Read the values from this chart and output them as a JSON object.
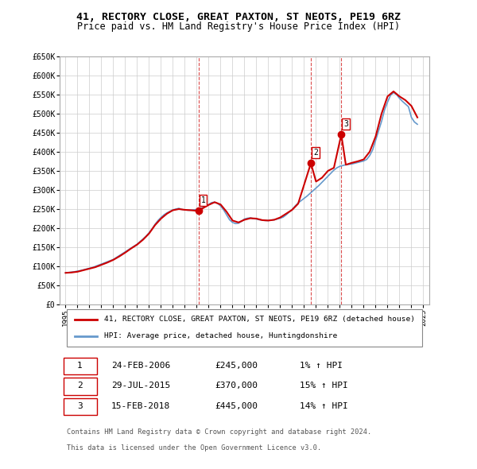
{
  "title": "41, RECTORY CLOSE, GREAT PAXTON, ST NEOTS, PE19 6RZ",
  "subtitle": "Price paid vs. HM Land Registry's House Price Index (HPI)",
  "ylabel": "",
  "background_color": "#ffffff",
  "plot_bg_color": "#ffffff",
  "grid_color": "#cccccc",
  "red_line_color": "#cc0000",
  "blue_line_color": "#6699cc",
  "sale_marker_color": "#cc0000",
  "dashed_line_color": "#cc0000",
  "ylim_min": 0,
  "ylim_max": 650000,
  "yticks": [
    0,
    50000,
    100000,
    150000,
    200000,
    250000,
    300000,
    350000,
    400000,
    450000,
    500000,
    550000,
    600000,
    650000
  ],
  "ytick_labels": [
    "£0",
    "£50K",
    "£100K",
    "£150K",
    "£200K",
    "£250K",
    "£300K",
    "£350K",
    "£400K",
    "£450K",
    "£500K",
    "£550K",
    "£600K",
    "£650K"
  ],
  "xlim_min": 1994.5,
  "xlim_max": 2025.5,
  "sale_dates": [
    2006.14,
    2015.57,
    2018.12
  ],
  "sale_prices": [
    245000,
    370000,
    445000
  ],
  "sale_labels": [
    "1",
    "2",
    "3"
  ],
  "sale_info": [
    {
      "num": "1",
      "date": "24-FEB-2006",
      "price": "£245,000",
      "change": "1% ↑ HPI"
    },
    {
      "num": "2",
      "date": "29-JUL-2015",
      "price": "£370,000",
      "change": "15% ↑ HPI"
    },
    {
      "num": "3",
      "date": "15-FEB-2018",
      "price": "£445,000",
      "change": "14% ↑ HPI"
    }
  ],
  "legend_line1": "41, RECTORY CLOSE, GREAT PAXTON, ST NEOTS, PE19 6RZ (detached house)",
  "legend_line2": "HPI: Average price, detached house, Huntingdonshire",
  "footer1": "Contains HM Land Registry data © Crown copyright and database right 2024.",
  "footer2": "This data is licensed under the Open Government Licence v3.0.",
  "hpi_years": [
    1995,
    1995.25,
    1995.5,
    1995.75,
    1996,
    1996.25,
    1996.5,
    1996.75,
    1997,
    1997.25,
    1997.5,
    1997.75,
    1998,
    1998.25,
    1998.5,
    1998.75,
    1999,
    1999.25,
    1999.5,
    1999.75,
    2000,
    2000.25,
    2000.5,
    2000.75,
    2001,
    2001.25,
    2001.5,
    2001.75,
    2002,
    2002.25,
    2002.5,
    2002.75,
    2003,
    2003.25,
    2003.5,
    2003.75,
    2004,
    2004.25,
    2004.5,
    2004.75,
    2005,
    2005.25,
    2005.5,
    2005.75,
    2006,
    2006.25,
    2006.5,
    2006.75,
    2007,
    2007.25,
    2007.5,
    2007.75,
    2008,
    2008.25,
    2008.5,
    2008.75,
    2009,
    2009.25,
    2009.5,
    2009.75,
    2010,
    2010.25,
    2010.5,
    2010.75,
    2011,
    2011.25,
    2011.5,
    2011.75,
    2012,
    2012.25,
    2012.5,
    2012.75,
    2013,
    2013.25,
    2013.5,
    2013.75,
    2014,
    2014.25,
    2014.5,
    2014.75,
    2015,
    2015.25,
    2015.5,
    2015.75,
    2016,
    2016.25,
    2016.5,
    2016.75,
    2017,
    2017.25,
    2017.5,
    2017.75,
    2018,
    2018.25,
    2018.5,
    2018.75,
    2019,
    2019.25,
    2019.5,
    2019.75,
    2020,
    2020.25,
    2020.5,
    2020.75,
    2021,
    2021.25,
    2021.5,
    2021.75,
    2022,
    2022.25,
    2022.5,
    2022.75,
    2023,
    2023.25,
    2023.5,
    2023.75,
    2024,
    2024.25,
    2024.5
  ],
  "hpi_values": [
    83000,
    84000,
    85000,
    86000,
    87500,
    89000,
    91000,
    93000,
    95000,
    97000,
    100000,
    103000,
    106000,
    109000,
    112000,
    115000,
    118000,
    123000,
    128000,
    133000,
    138000,
    143000,
    148000,
    153000,
    158000,
    165000,
    172000,
    179000,
    188000,
    198000,
    210000,
    220000,
    228000,
    235000,
    240000,
    244000,
    248000,
    250000,
    252000,
    249000,
    248000,
    247000,
    247000,
    248000,
    249000,
    251000,
    254000,
    258000,
    262000,
    267000,
    268000,
    265000,
    258000,
    248000,
    235000,
    222000,
    215000,
    212000,
    213000,
    218000,
    224000,
    226000,
    227000,
    225000,
    224000,
    222000,
    221000,
    220000,
    220000,
    221000,
    222000,
    224000,
    226000,
    229000,
    235000,
    242000,
    249000,
    258000,
    266000,
    272000,
    278000,
    284000,
    291000,
    298000,
    305000,
    312000,
    320000,
    328000,
    336000,
    344000,
    352000,
    358000,
    362000,
    364000,
    366000,
    367000,
    368000,
    370000,
    372000,
    374000,
    376000,
    380000,
    390000,
    405000,
    430000,
    455000,
    480000,
    510000,
    530000,
    548000,
    555000,
    550000,
    540000,
    532000,
    525000,
    518000,
    490000,
    478000,
    472000
  ],
  "red_line_years": [
    1995,
    1995.5,
    1996,
    1996.5,
    1997,
    1997.5,
    1998,
    1998.5,
    1999,
    1999.5,
    2000,
    2000.5,
    2001,
    2001.5,
    2002,
    2002.5,
    2003,
    2003.5,
    2004,
    2004.5,
    2005,
    2005.5,
    2006.14,
    2006.5,
    2007,
    2007.5,
    2008,
    2008.5,
    2009,
    2009.5,
    2010,
    2010.5,
    2011,
    2011.5,
    2012,
    2012.5,
    2013,
    2013.5,
    2014,
    2014.5,
    2015.57,
    2016,
    2016.5,
    2017,
    2017.5,
    2018.12,
    2018.5,
    2019,
    2019.5,
    2020,
    2020.5,
    2021,
    2021.5,
    2022,
    2022.5,
    2023,
    2023.5,
    2024,
    2024.5
  ],
  "red_line_values": [
    83000,
    84000,
    86000,
    90000,
    94000,
    98000,
    104000,
    110000,
    117000,
    126000,
    136000,
    147000,
    157000,
    170000,
    186000,
    208000,
    225000,
    238000,
    247000,
    250000,
    248000,
    247000,
    245000,
    252000,
    261000,
    268000,
    262000,
    243000,
    220000,
    215000,
    222000,
    226000,
    225000,
    221000,
    220000,
    222000,
    228000,
    238000,
    248000,
    264000,
    370000,
    322000,
    332000,
    350000,
    358000,
    445000,
    366000,
    371000,
    375000,
    380000,
    400000,
    440000,
    500000,
    545000,
    558000,
    545000,
    535000,
    520000,
    490000
  ]
}
